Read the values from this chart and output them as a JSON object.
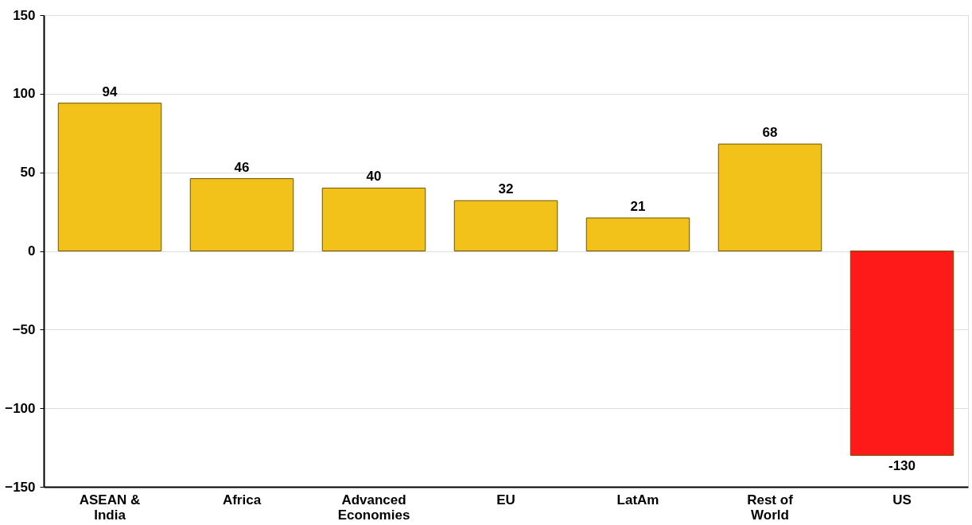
{
  "chart_data": {
    "type": "bar",
    "categories": [
      "ASEAN &\nIndia",
      "Africa",
      "Advanced\nEconomies",
      "EU",
      "LatAm",
      "Rest of\nWorld",
      "US"
    ],
    "values": [
      94,
      46,
      40,
      32,
      21,
      68,
      -130
    ],
    "colors": [
      "#f2c21b",
      "#f2c21b",
      "#f2c21b",
      "#f2c21b",
      "#f2c21b",
      "#f2c21b",
      "#ff1a1a"
    ],
    "ylim": [
      -150,
      150
    ],
    "yticks": [
      -150,
      -100,
      -50,
      0,
      50,
      100,
      150
    ],
    "grid": "y",
    "data_labels": true
  }
}
